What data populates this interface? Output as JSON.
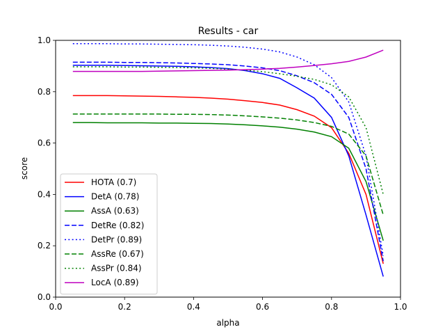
{
  "chart_data": {
    "type": "line",
    "title": "Results - car",
    "xlabel": "alpha",
    "ylabel": "score",
    "xlim": [
      0.0,
      1.0
    ],
    "ylim": [
      0.0,
      1.0
    ],
    "xticks": [
      "0.0",
      "0.2",
      "0.4",
      "0.6",
      "0.8",
      "1.0"
    ],
    "yticks": [
      "0.0",
      "0.2",
      "0.4",
      "0.6",
      "0.8",
      "1.0"
    ],
    "grid": false,
    "legend_position": "lower-left",
    "x": [
      0.05,
      0.1,
      0.15,
      0.2,
      0.25,
      0.3,
      0.35,
      0.4,
      0.45,
      0.5,
      0.55,
      0.6,
      0.65,
      0.7,
      0.75,
      0.8,
      0.85,
      0.9,
      0.95
    ],
    "series": [
      {
        "name": "HOTA (0.7)",
        "color": "#ff0000",
        "style": "solid",
        "values": [
          0.785,
          0.785,
          0.785,
          0.784,
          0.783,
          0.782,
          0.78,
          0.778,
          0.775,
          0.771,
          0.765,
          0.758,
          0.748,
          0.73,
          0.705,
          0.66,
          0.56,
          0.4,
          0.13
        ]
      },
      {
        "name": "DetA (0.78)",
        "color": "#0000ff",
        "style": "solid",
        "values": [
          0.903,
          0.903,
          0.903,
          0.902,
          0.901,
          0.9,
          0.899,
          0.897,
          0.894,
          0.89,
          0.882,
          0.87,
          0.852,
          0.815,
          0.775,
          0.7,
          0.55,
          0.32,
          0.08
        ]
      },
      {
        "name": "AssA (0.63)",
        "color": "#008000",
        "style": "solid",
        "values": [
          0.68,
          0.68,
          0.679,
          0.679,
          0.679,
          0.678,
          0.678,
          0.677,
          0.676,
          0.674,
          0.671,
          0.667,
          0.662,
          0.654,
          0.643,
          0.625,
          0.58,
          0.45,
          0.22
        ]
      },
      {
        "name": "DetRe (0.82)",
        "color": "#0000ff",
        "style": "dashed",
        "values": [
          0.915,
          0.915,
          0.915,
          0.914,
          0.914,
          0.913,
          0.912,
          0.91,
          0.908,
          0.905,
          0.9,
          0.893,
          0.882,
          0.862,
          0.835,
          0.79,
          0.7,
          0.5,
          0.14
        ]
      },
      {
        "name": "DetPr (0.89)",
        "color": "#0000ff",
        "style": "dotted",
        "values": [
          0.987,
          0.987,
          0.987,
          0.986,
          0.986,
          0.985,
          0.984,
          0.983,
          0.981,
          0.978,
          0.973,
          0.966,
          0.955,
          0.935,
          0.905,
          0.855,
          0.76,
          0.55,
          0.16
        ]
      },
      {
        "name": "AssRe (0.67)",
        "color": "#008000",
        "style": "dashed",
        "values": [
          0.713,
          0.713,
          0.713,
          0.713,
          0.713,
          0.713,
          0.712,
          0.712,
          0.711,
          0.709,
          0.706,
          0.702,
          0.697,
          0.69,
          0.68,
          0.665,
          0.635,
          0.55,
          0.32
        ]
      },
      {
        "name": "AssPr (0.84)",
        "color": "#008000",
        "style": "dotted",
        "values": [
          0.897,
          0.897,
          0.897,
          0.896,
          0.896,
          0.895,
          0.894,
          0.893,
          0.891,
          0.888,
          0.884,
          0.878,
          0.87,
          0.86,
          0.848,
          0.827,
          0.78,
          0.66,
          0.4
        ]
      },
      {
        "name": "LocA (0.89)",
        "color": "#bf00bf",
        "style": "solid",
        "values": [
          0.879,
          0.879,
          0.879,
          0.879,
          0.879,
          0.88,
          0.881,
          0.882,
          0.883,
          0.884,
          0.886,
          0.888,
          0.891,
          0.896,
          0.902,
          0.909,
          0.918,
          0.935,
          0.962
        ]
      }
    ]
  }
}
